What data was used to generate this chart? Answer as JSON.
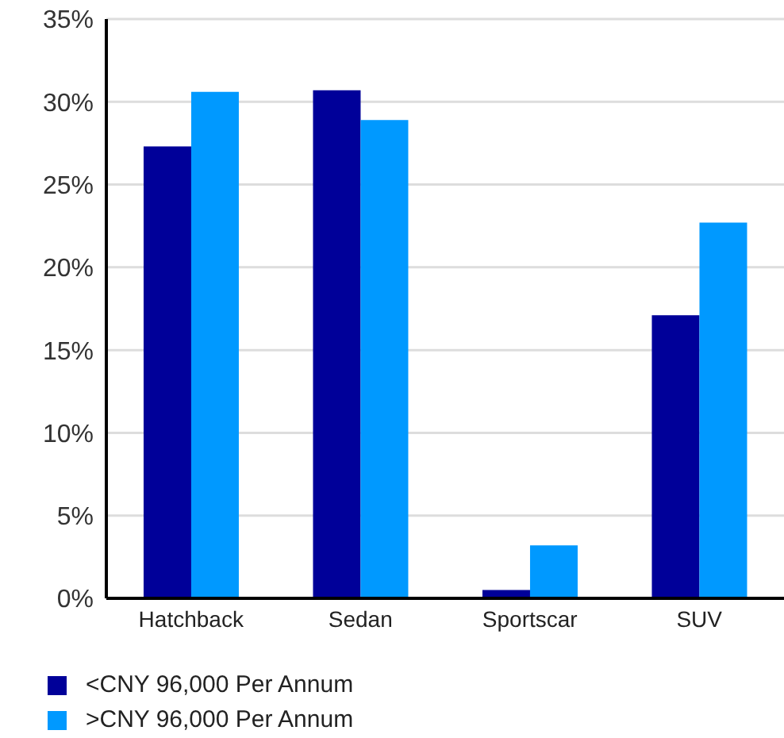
{
  "chart_data": {
    "type": "bar",
    "categories": [
      "Hatchback",
      "Sedan",
      "Sportscar",
      "SUV"
    ],
    "series": [
      {
        "name": "<CNY 96,000 Per Annum",
        "color": "#000099",
        "values": [
          27.3,
          30.7,
          0.5,
          17.1
        ]
      },
      {
        "name": ">CNY 96,000 Per Annum",
        "color": "#0099ff",
        "values": [
          30.6,
          28.9,
          3.2,
          22.7
        ]
      }
    ],
    "ylim": [
      0,
      35
    ],
    "yticks": [
      {
        "value": 0,
        "label": "0%"
      },
      {
        "value": 5,
        "label": "5%"
      },
      {
        "value": 10,
        "label": "10%"
      },
      {
        "value": 15,
        "label": "15%"
      },
      {
        "value": 20,
        "label": "20%"
      },
      {
        "value": 25,
        "label": "25%"
      },
      {
        "value": 30,
        "label": "30%"
      },
      {
        "value": 35,
        "label": "35%"
      }
    ],
    "grid": "y",
    "legend": "bottom left"
  }
}
